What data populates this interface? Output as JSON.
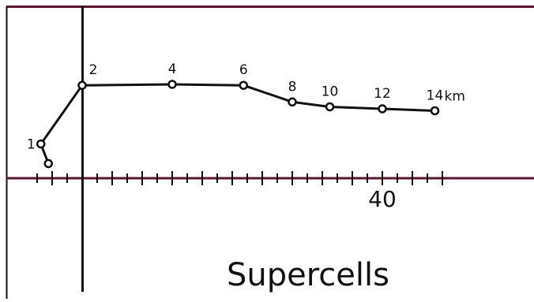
{
  "chart_data": {
    "type": "line",
    "title": "Supercells",
    "xlabel": "",
    "ylabel": "",
    "unit_label": "km",
    "xlim": [
      -9,
      49
    ],
    "ylim": [
      -2.5,
      14.5
    ],
    "grid": false,
    "x_ticks": [
      -6,
      -4,
      -2,
      0,
      2,
      4,
      6,
      8,
      10,
      12,
      14,
      16,
      18,
      20,
      22,
      24,
      26,
      28,
      30,
      32,
      34,
      36,
      38,
      40,
      42,
      44,
      46,
      48
    ],
    "x_tick_labels": [
      {
        "x": 40,
        "label": "40"
      }
    ],
    "series": [
      {
        "points": [
          {
            "x": -4.5,
            "y": 1.5,
            "label": ""
          },
          {
            "x": -5.5,
            "y": 3.5,
            "label": "1"
          },
          {
            "x": 0,
            "y": 9.5,
            "label": "2"
          },
          {
            "x": 12,
            "y": 9.6,
            "label": "4"
          },
          {
            "x": 21.5,
            "y": 9.5,
            "label": "6"
          },
          {
            "x": 28,
            "y": 7.8,
            "label": "8"
          },
          {
            "x": 33,
            "y": 7.3,
            "label": "10"
          },
          {
            "x": 40,
            "y": 7.1,
            "label": "12"
          },
          {
            "x": 47,
            "y": 6.9,
            "label": "14"
          }
        ]
      }
    ]
  }
}
